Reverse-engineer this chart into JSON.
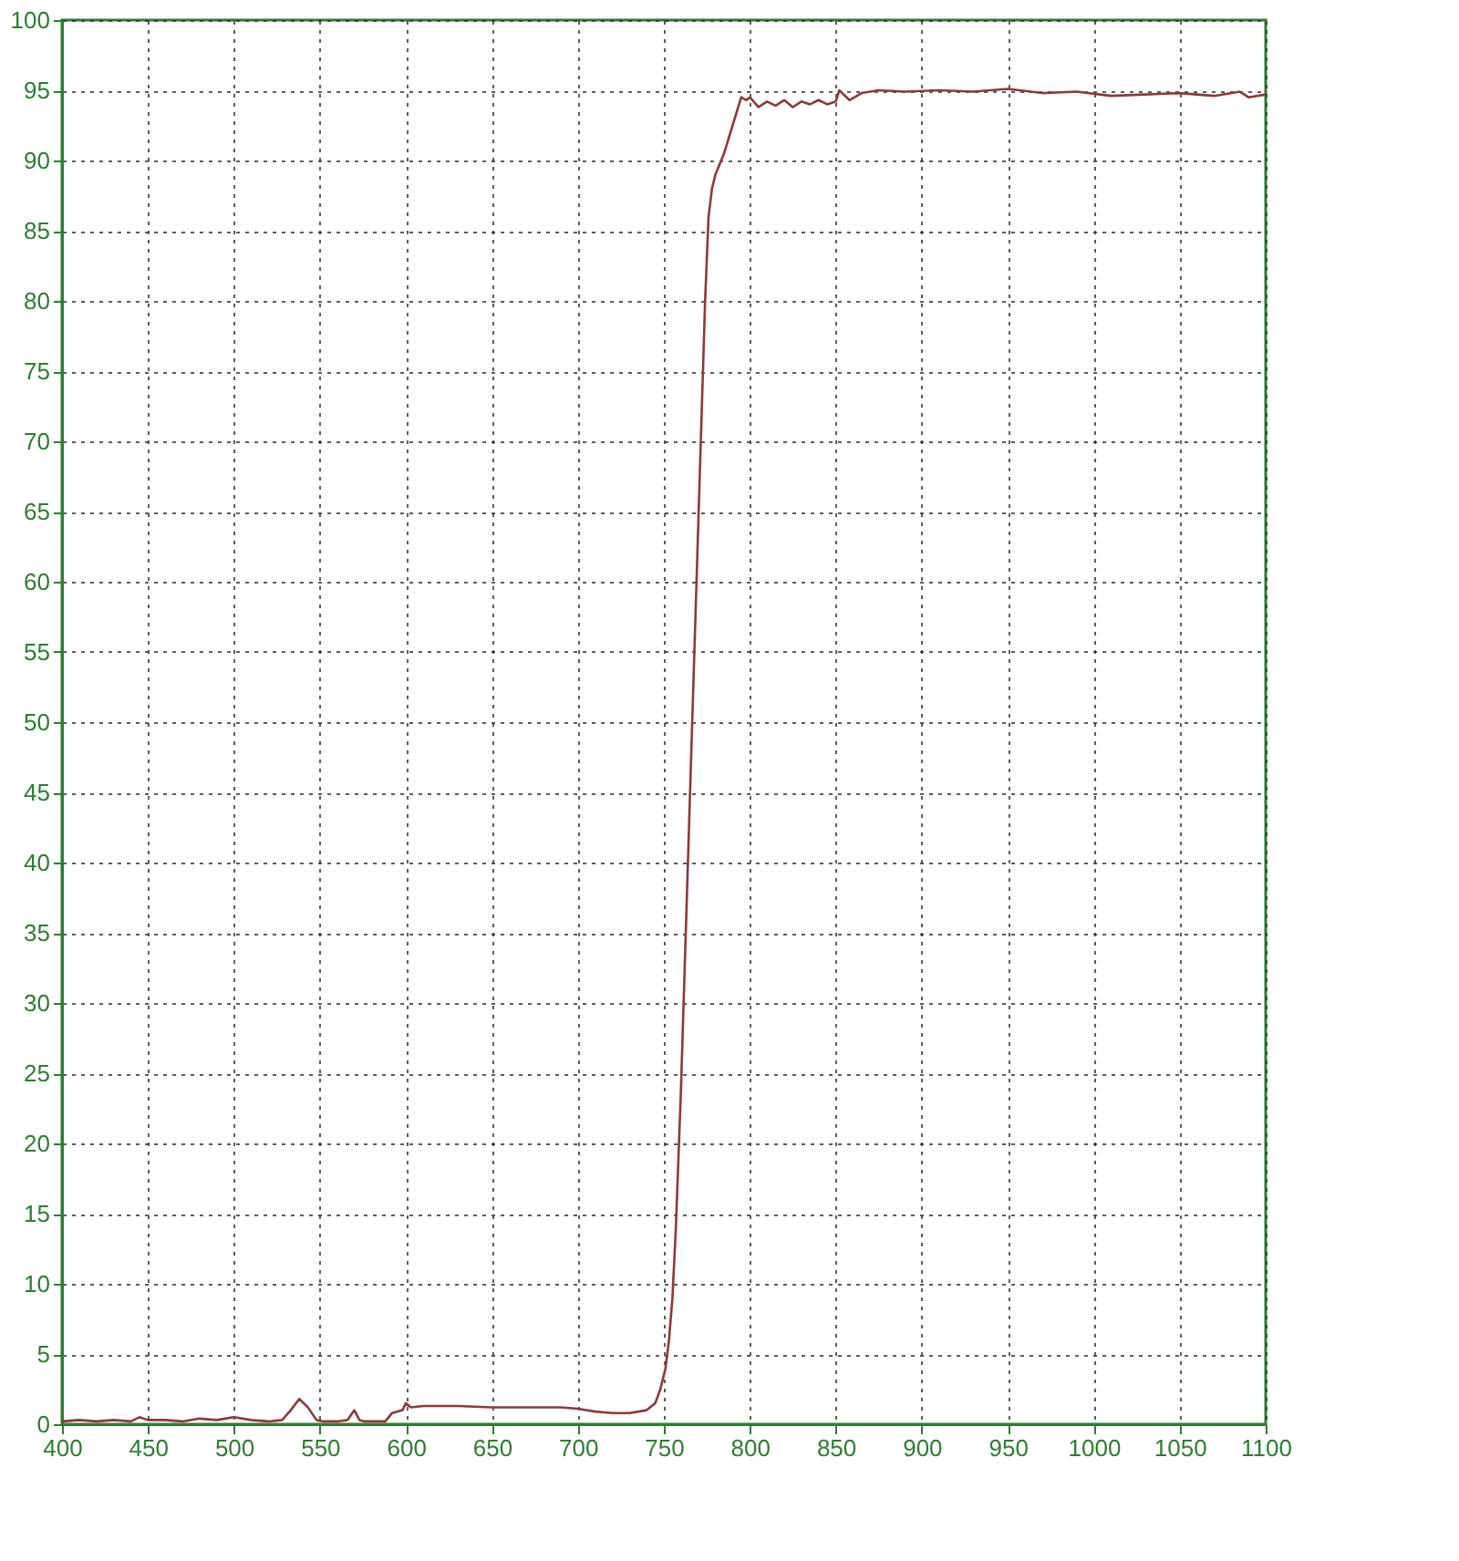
{
  "chart_data": {
    "type": "line",
    "xlim": [
      400,
      1100
    ],
    "ylim": [
      0,
      100
    ],
    "xticks": [
      400,
      450,
      500,
      550,
      600,
      650,
      700,
      750,
      800,
      850,
      900,
      950,
      1000,
      1050,
      1100
    ],
    "yticks": [
      0,
      5,
      10,
      15,
      20,
      25,
      30,
      35,
      40,
      45,
      50,
      55,
      60,
      65,
      70,
      75,
      80,
      85,
      90,
      95,
      100
    ],
    "grid": true,
    "line_style": "solid",
    "marker": "none",
    "series": [
      {
        "color": "#8b3a3a",
        "x": [
          400,
          410,
          420,
          430,
          440,
          445,
          450,
          460,
          470,
          480,
          490,
          500,
          510,
          520,
          528,
          533,
          538,
          543,
          548,
          552,
          560,
          566,
          570,
          573,
          576,
          580,
          588,
          592,
          598,
          600,
          603,
          610,
          630,
          650,
          670,
          690,
          700,
          710,
          720,
          730,
          740,
          745,
          748,
          751,
          753,
          755,
          757,
          760,
          763,
          766,
          769,
          772,
          774,
          776,
          778,
          780,
          785,
          790,
          795,
          798,
          800,
          805,
          810,
          815,
          820,
          825,
          830,
          835,
          840,
          845,
          850,
          852,
          858,
          865,
          875,
          890,
          910,
          930,
          950,
          970,
          990,
          1010,
          1030,
          1050,
          1070,
          1085,
          1090,
          1100
        ],
        "values": [
          0.2,
          0.3,
          0.2,
          0.3,
          0.2,
          0.5,
          0.3,
          0.3,
          0.2,
          0.4,
          0.3,
          0.5,
          0.3,
          0.2,
          0.3,
          1.0,
          1.8,
          1.2,
          0.3,
          0.2,
          0.2,
          0.3,
          1.0,
          0.3,
          0.2,
          0.2,
          0.2,
          0.8,
          1.0,
          1.5,
          1.2,
          1.3,
          1.3,
          1.2,
          1.2,
          1.2,
          1.1,
          0.9,
          0.8,
          0.8,
          1.0,
          1.5,
          2.5,
          4.0,
          6.0,
          9.0,
          14.0,
          24.0,
          36.0,
          48.0,
          60.0,
          72.0,
          80.0,
          86.0,
          88.0,
          89.0,
          90.5,
          92.5,
          94.5,
          94.3,
          94.5,
          93.8,
          94.2,
          93.9,
          94.3,
          93.8,
          94.2,
          94.0,
          94.3,
          94.0,
          94.2,
          95.0,
          94.3,
          94.8,
          95.0,
          94.9,
          95.0,
          94.9,
          95.1,
          94.8,
          94.9,
          94.6,
          94.7,
          94.8,
          94.6,
          94.9,
          94.5,
          94.7
        ]
      }
    ]
  }
}
